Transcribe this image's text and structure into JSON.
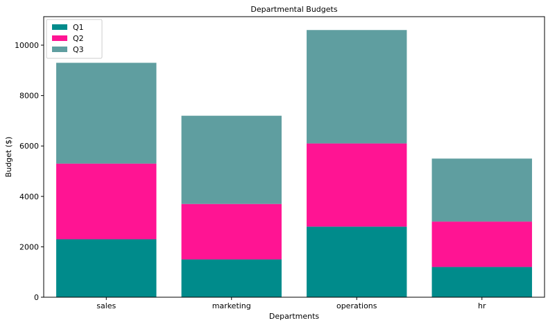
{
  "chart_data": {
    "type": "bar",
    "stacked": true,
    "title": "Departmental Budgets",
    "xlabel": "Departments",
    "ylabel": "Budget ($)",
    "categories": [
      "sales",
      "marketing",
      "operations",
      "hr"
    ],
    "series": [
      {
        "name": "Q1",
        "color": "#008b8b",
        "values": [
          2300,
          1500,
          2800,
          1200
        ]
      },
      {
        "name": "Q2",
        "color": "#ff1493",
        "values": [
          3000,
          2200,
          3300,
          1800
        ]
      },
      {
        "name": "Q3",
        "color": "#5f9ea0",
        "values": [
          4000,
          3500,
          4500,
          2500
        ]
      }
    ],
    "ylim": [
      0,
      11130
    ],
    "yticks": [
      0,
      2000,
      4000,
      6000,
      8000,
      10000
    ],
    "grid": false,
    "legend_position": "top-left"
  }
}
